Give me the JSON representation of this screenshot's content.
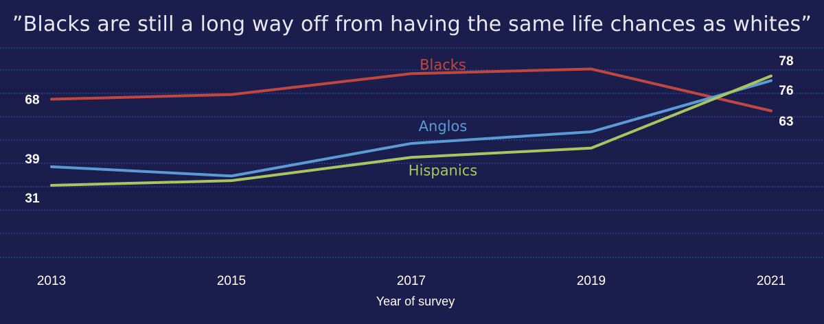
{
  "chart_data": {
    "type": "line",
    "title": "”Blacks are still a long way off from having the same life chances as whites”",
    "xlabel": "Year of survey",
    "ylabel": "",
    "x": [
      "2013",
      "2015",
      "2017",
      "2019",
      "2021"
    ],
    "ylim": [
      0,
      90
    ],
    "grid": true,
    "series": [
      {
        "name": "Blacks",
        "color": "#c0473f",
        "values": [
          68,
          70,
          79,
          81,
          63
        ]
      },
      {
        "name": "Anglos",
        "color": "#5b9bd5",
        "values": [
          39,
          35,
          49,
          54,
          76
        ]
      },
      {
        "name": "Hispanics",
        "color": "#a8c560",
        "values": [
          31,
          33,
          43,
          47,
          78
        ]
      }
    ],
    "annotations": {
      "start_labels": [
        "68",
        "39",
        "31"
      ],
      "end_labels": [
        "78",
        "76",
        "63"
      ]
    }
  }
}
